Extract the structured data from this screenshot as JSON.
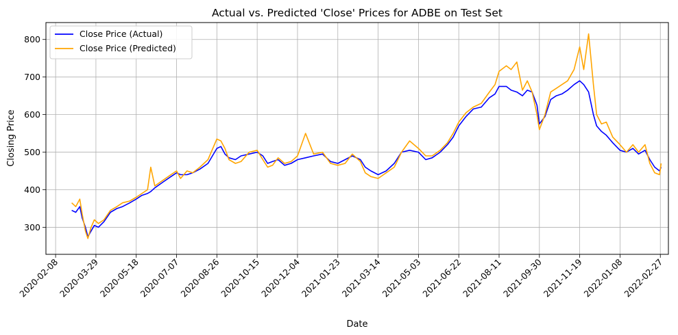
{
  "chart_data": {
    "type": "line",
    "title": "Actual vs. Predicted 'Close' Prices for ADBE on Test Set",
    "xlabel": "Date",
    "ylabel": "Closing Price",
    "x_ticks": [
      "2020-02-08",
      "2020-03-29",
      "2020-05-18",
      "2020-07-07",
      "2020-08-26",
      "2020-10-15",
      "2020-12-04",
      "2021-01-23",
      "2021-03-14",
      "2021-05-03",
      "2021-06-22",
      "2021-08-11",
      "2021-09-30",
      "2021-11-19",
      "2022-01-08",
      "2022-02-27"
    ],
    "y_ticks": [
      300,
      400,
      500,
      600,
      700,
      800
    ],
    "xlim": [
      "2020-01-27",
      "2022-03-09"
    ],
    "ylim": [
      228,
      845
    ],
    "grid": true,
    "legend_position": "upper-left",
    "series": [
      {
        "name": "Close Price (Actual)",
        "color": "#0000ff",
        "x": [
          "2020-02-28",
          "2020-03-04",
          "2020-03-09",
          "2020-03-12",
          "2020-03-16",
          "2020-03-19",
          "2020-03-23",
          "2020-03-27",
          "2020-04-01",
          "2020-04-08",
          "2020-04-16",
          "2020-04-24",
          "2020-05-01",
          "2020-05-10",
          "2020-05-18",
          "2020-05-25",
          "2020-06-01",
          "2020-06-05",
          "2020-06-10",
          "2020-06-20",
          "2020-06-30",
          "2020-07-07",
          "2020-07-12",
          "2020-07-20",
          "2020-07-27",
          "2020-08-05",
          "2020-08-15",
          "2020-08-26",
          "2020-08-31",
          "2020-09-05",
          "2020-09-10",
          "2020-09-18",
          "2020-09-25",
          "2020-10-05",
          "2020-10-15",
          "2020-10-22",
          "2020-10-28",
          "2020-11-03",
          "2020-11-10",
          "2020-11-18",
          "2020-11-26",
          "2020-12-04",
          "2020-12-14",
          "2020-12-24",
          "2021-01-04",
          "2021-01-14",
          "2021-01-23",
          "2021-02-01",
          "2021-02-10",
          "2021-02-20",
          "2021-02-26",
          "2021-03-05",
          "2021-03-14",
          "2021-03-24",
          "2021-04-03",
          "2021-04-12",
          "2021-04-22",
          "2021-05-03",
          "2021-05-12",
          "2021-05-20",
          "2021-05-30",
          "2021-06-08",
          "2021-06-15",
          "2021-06-22",
          "2021-07-01",
          "2021-07-10",
          "2021-07-20",
          "2021-07-30",
          "2021-08-06",
          "2021-08-11",
          "2021-08-20",
          "2021-08-26",
          "2021-09-02",
          "2021-09-09",
          "2021-09-15",
          "2021-09-21",
          "2021-09-27",
          "2021-09-30",
          "2021-10-07",
          "2021-10-14",
          "2021-10-21",
          "2021-10-28",
          "2021-11-04",
          "2021-11-12",
          "2021-11-19",
          "2021-11-24",
          "2021-11-30",
          "2021-12-06",
          "2021-12-10",
          "2021-12-16",
          "2021-12-22",
          "2021-12-30",
          "2022-01-08",
          "2022-01-16",
          "2022-01-24",
          "2022-01-31",
          "2022-02-08",
          "2022-02-14",
          "2022-02-20",
          "2022-02-26",
          "2022-02-28"
        ],
        "y": [
          345,
          340,
          355,
          325,
          300,
          275,
          290,
          305,
          300,
          315,
          340,
          350,
          355,
          365,
          375,
          385,
          390,
          395,
          405,
          420,
          435,
          445,
          440,
          440,
          445,
          455,
          470,
          510,
          515,
          495,
          485,
          480,
          490,
          495,
          500,
          490,
          470,
          475,
          480,
          465,
          470,
          480,
          485,
          490,
          495,
          475,
          470,
          480,
          490,
          480,
          460,
          450,
          440,
          450,
          470,
          500,
          505,
          500,
          480,
          485,
          500,
          520,
          540,
          570,
          595,
          615,
          620,
          645,
          655,
          675,
          675,
          665,
          660,
          650,
          665,
          660,
          625,
          575,
          595,
          640,
          650,
          655,
          665,
          680,
          690,
          680,
          660,
          600,
          570,
          555,
          545,
          525,
          505,
          500,
          510,
          495,
          505,
          480,
          460,
          450,
          460
        ]
      },
      {
        "name": "Close Price (Predicted)",
        "color": "#ffa500",
        "x": [
          "2020-02-28",
          "2020-03-04",
          "2020-03-09",
          "2020-03-12",
          "2020-03-16",
          "2020-03-19",
          "2020-03-23",
          "2020-03-27",
          "2020-04-01",
          "2020-04-08",
          "2020-04-16",
          "2020-04-24",
          "2020-05-01",
          "2020-05-10",
          "2020-05-18",
          "2020-05-25",
          "2020-06-01",
          "2020-06-05",
          "2020-06-10",
          "2020-06-20",
          "2020-06-30",
          "2020-07-07",
          "2020-07-12",
          "2020-07-20",
          "2020-07-27",
          "2020-08-05",
          "2020-08-15",
          "2020-08-26",
          "2020-08-31",
          "2020-09-05",
          "2020-09-10",
          "2020-09-18",
          "2020-09-25",
          "2020-10-05",
          "2020-10-15",
          "2020-10-22",
          "2020-10-28",
          "2020-11-03",
          "2020-11-10",
          "2020-11-18",
          "2020-11-26",
          "2020-12-04",
          "2020-12-14",
          "2020-12-24",
          "2021-01-04",
          "2021-01-14",
          "2021-01-23",
          "2021-02-01",
          "2021-02-10",
          "2021-02-20",
          "2021-02-26",
          "2021-03-05",
          "2021-03-14",
          "2021-03-24",
          "2021-04-03",
          "2021-04-12",
          "2021-04-22",
          "2021-05-03",
          "2021-05-12",
          "2021-05-20",
          "2021-05-30",
          "2021-06-08",
          "2021-06-15",
          "2021-06-22",
          "2021-07-01",
          "2021-07-10",
          "2021-07-20",
          "2021-07-30",
          "2021-08-06",
          "2021-08-11",
          "2021-08-20",
          "2021-08-26",
          "2021-09-02",
          "2021-09-09",
          "2021-09-15",
          "2021-09-21",
          "2021-09-27",
          "2021-09-30",
          "2021-10-07",
          "2021-10-14",
          "2021-10-21",
          "2021-10-28",
          "2021-11-04",
          "2021-11-12",
          "2021-11-19",
          "2021-11-24",
          "2021-11-30",
          "2021-12-06",
          "2021-12-10",
          "2021-12-16",
          "2021-12-22",
          "2021-12-30",
          "2022-01-08",
          "2022-01-16",
          "2022-01-24",
          "2022-01-31",
          "2022-02-08",
          "2022-02-14",
          "2022-02-20",
          "2022-02-26",
          "2022-02-28"
        ],
        "y": [
          365,
          355,
          375,
          335,
          290,
          270,
          300,
          320,
          310,
          320,
          345,
          355,
          365,
          370,
          380,
          390,
          400,
          460,
          410,
          425,
          440,
          450,
          430,
          450,
          445,
          460,
          480,
          535,
          530,
          510,
          480,
          470,
          475,
          500,
          505,
          480,
          460,
          465,
          485,
          470,
          475,
          490,
          550,
          495,
          500,
          470,
          465,
          470,
          495,
          475,
          445,
          435,
          430,
          445,
          460,
          500,
          530,
          510,
          490,
          490,
          505,
          525,
          550,
          580,
          605,
          620,
          630,
          660,
          680,
          715,
          730,
          720,
          740,
          665,
          690,
          660,
          600,
          560,
          600,
          660,
          670,
          680,
          690,
          720,
          780,
          720,
          815,
          680,
          600,
          575,
          580,
          540,
          520,
          500,
          520,
          500,
          520,
          470,
          445,
          440,
          470
        ]
      }
    ]
  }
}
